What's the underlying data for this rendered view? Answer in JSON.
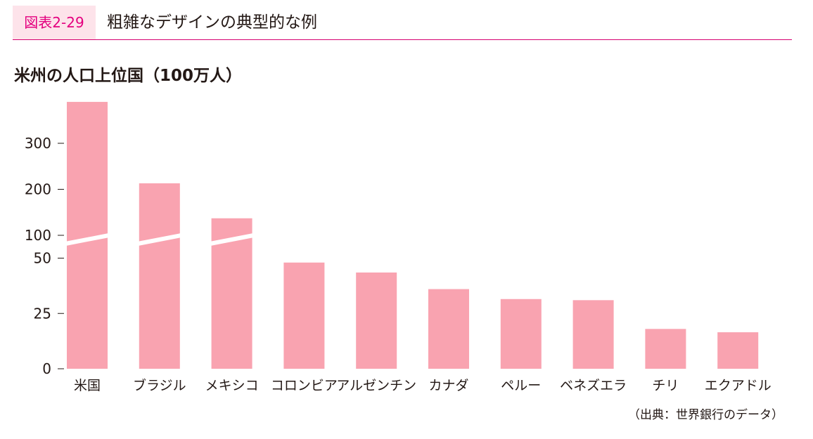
{
  "header": {
    "figure_label": "図表2-29",
    "figure_title": "粗雑なデザインの典型的な例"
  },
  "source_note": "（出典：世界銀行のデータ）",
  "colors": {
    "bar": "#f9a3b0",
    "accent": "#e4007f",
    "label_bg": "#fde3ea",
    "break_gap": "#ffffff"
  },
  "chart_data": {
    "type": "bar",
    "title": "米州の人口上位国（100万人）",
    "xlabel": "",
    "ylabel": "",
    "axis_break": {
      "between": [
        50,
        100
      ],
      "note": "broken y-axis; scale below the break differs from scale above it"
    },
    "yticks": [
      0,
      25,
      50,
      100,
      200,
      300
    ],
    "categories": [
      "米国",
      "ブラジル",
      "メキシコ",
      "コロンビア",
      "アルゼンチン",
      "カナダ",
      "ペルー",
      "ベネズエラ",
      "チリ",
      "エクアドル"
    ],
    "values": [
      390,
      213,
      137,
      48,
      43.5,
      36,
      31.5,
      31,
      18,
      16.5
    ],
    "grid": false,
    "legend": "none"
  }
}
